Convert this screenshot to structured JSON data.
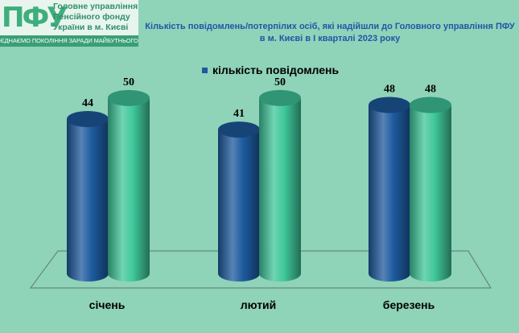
{
  "logo": {
    "mark": "ПФУ",
    "org_lines": [
      "Головне управління",
      "Пенсійного фонду",
      "України в м. Києві"
    ],
    "motto": "ЄДНАЄМО ПОКОЛІННЯ ЗАРАДИ МАЙБУТНЬОГО"
  },
  "title_lines": [
    "Кількість повідомлень/потерпілих осіб, які надійшли до Головного управління ПФУ",
    "в м. Києві в І кварталі 2023 року"
  ],
  "colors": {
    "background": "#8fd3b9",
    "series_1": "#1d5a9e",
    "series_2": "#3fc79a",
    "title": "#1f57a6",
    "brand": "#3fae7d"
  },
  "chart_data": {
    "type": "bar",
    "categories": [
      "січень",
      "лютий",
      "березень"
    ],
    "series": [
      {
        "name": "кількість повідомлень",
        "values": [
          44,
          41,
          48
        ]
      },
      {
        "name": "",
        "values": [
          50,
          50,
          48
        ]
      }
    ],
    "legend_position": "top-center",
    "ylim": [
      0,
      55
    ],
    "grid": false
  }
}
